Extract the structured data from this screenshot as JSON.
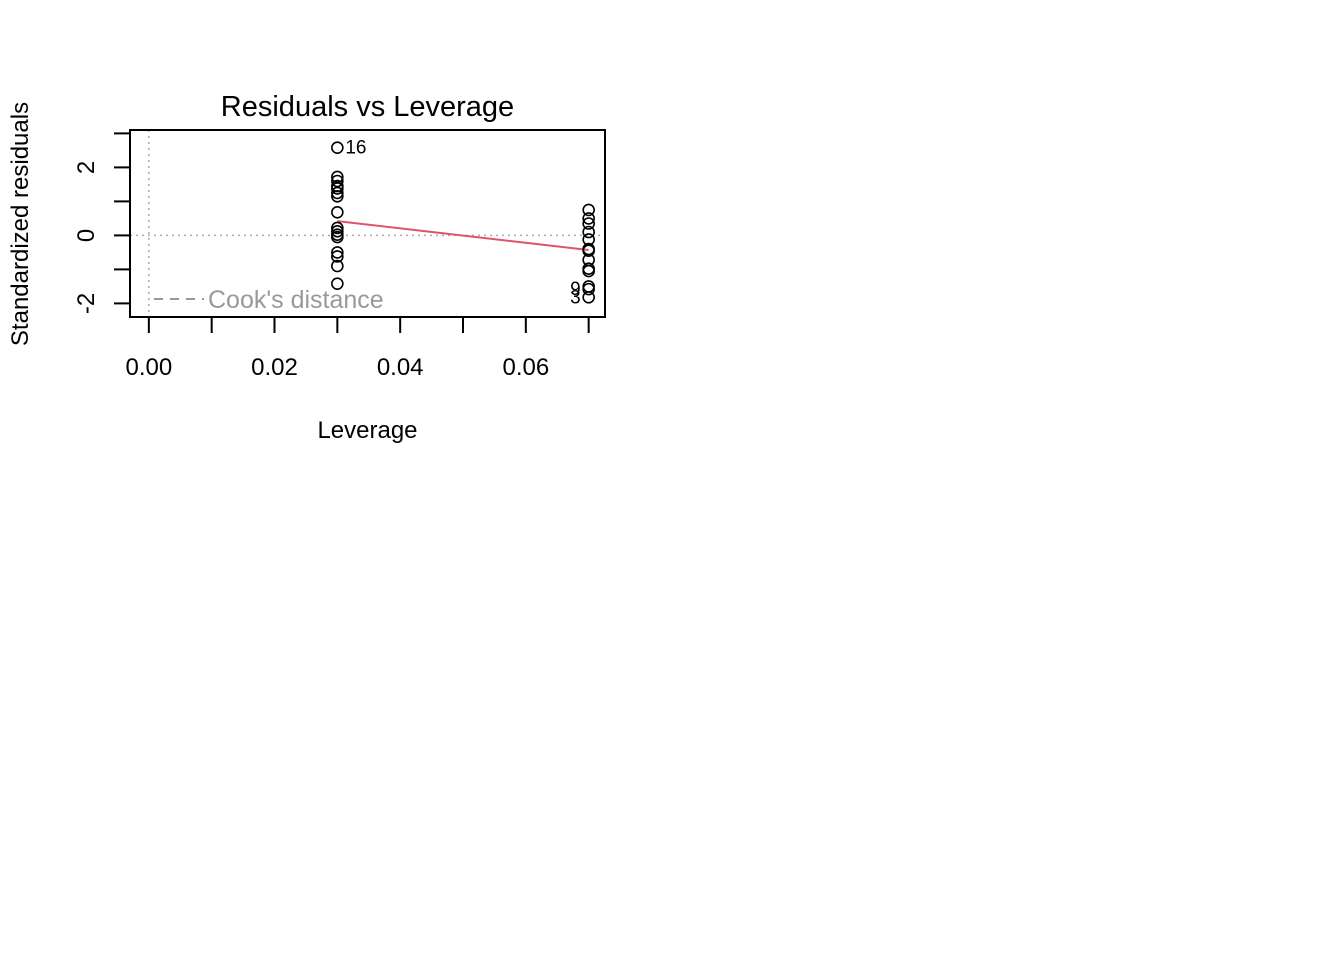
{
  "chart_data": {
    "type": "scatter",
    "title": "Residuals vs Leverage",
    "xlabel": "Leverage",
    "ylabel": "Standardized residuals",
    "xlim": [
      -0.003,
      0.0726
    ],
    "ylim": [
      -2.4,
      3.1
    ],
    "x_ticks": [
      0.0,
      0.01,
      0.02,
      0.03,
      0.04,
      0.05,
      0.06,
      0.07
    ],
    "x_tick_labels": [
      {
        "value": 0.0,
        "label": "0.00"
      },
      {
        "value": 0.02,
        "label": "0.02"
      },
      {
        "value": 0.04,
        "label": "0.04"
      },
      {
        "value": 0.06,
        "label": "0.06"
      }
    ],
    "y_ticks": [
      -2,
      -1,
      0,
      1,
      2,
      3
    ],
    "y_tick_labels": [
      {
        "value": -2,
        "label": "-2"
      },
      {
        "value": 0,
        "label": "0"
      },
      {
        "value": 2,
        "label": "2"
      }
    ],
    "points": [
      {
        "x": 0.03,
        "y": 2.58
      },
      {
        "x": 0.03,
        "y": 1.72
      },
      {
        "x": 0.03,
        "y": 1.6
      },
      {
        "x": 0.03,
        "y": 1.45
      },
      {
        "x": 0.03,
        "y": 1.38
      },
      {
        "x": 0.03,
        "y": 1.25
      },
      {
        "x": 0.03,
        "y": 1.15
      },
      {
        "x": 0.03,
        "y": 0.68
      },
      {
        "x": 0.03,
        "y": 0.22
      },
      {
        "x": 0.03,
        "y": 0.12
      },
      {
        "x": 0.03,
        "y": 0.02
      },
      {
        "x": 0.03,
        "y": -0.05
      },
      {
        "x": 0.03,
        "y": -0.5
      },
      {
        "x": 0.03,
        "y": -0.62
      },
      {
        "x": 0.03,
        "y": -0.9
      },
      {
        "x": 0.03,
        "y": -1.42
      },
      {
        "x": 0.07,
        "y": 0.75
      },
      {
        "x": 0.07,
        "y": 0.5
      },
      {
        "x": 0.07,
        "y": 0.35
      },
      {
        "x": 0.07,
        "y": 0.1
      },
      {
        "x": 0.07,
        "y": -0.12
      },
      {
        "x": 0.07,
        "y": -0.4
      },
      {
        "x": 0.07,
        "y": -0.45
      },
      {
        "x": 0.07,
        "y": -0.72
      },
      {
        "x": 0.07,
        "y": -0.98
      },
      {
        "x": 0.07,
        "y": -1.05
      },
      {
        "x": 0.07,
        "y": -1.5
      },
      {
        "x": 0.07,
        "y": -1.58
      },
      {
        "x": 0.07,
        "y": -1.82
      }
    ],
    "point_labels": [
      {
        "x": 0.03,
        "y": 2.58,
        "label": "16",
        "side": "right"
      },
      {
        "x": 0.07,
        "y": -1.58,
        "label": "9",
        "side": "left"
      },
      {
        "x": 0.07,
        "y": -1.82,
        "label": "3",
        "side": "left"
      }
    ],
    "smooth_line": {
      "x": [
        0.03,
        0.07
      ],
      "y": [
        0.42,
        -0.43
      ],
      "color": "#DF536B"
    },
    "reference_lines": {
      "h": 0,
      "v": 0,
      "color": "#AAAAAA",
      "style": "dotted"
    },
    "legend": {
      "label": "Cook's distance",
      "placement": "bottom-left",
      "color": "#999999",
      "style": "dashed"
    }
  }
}
